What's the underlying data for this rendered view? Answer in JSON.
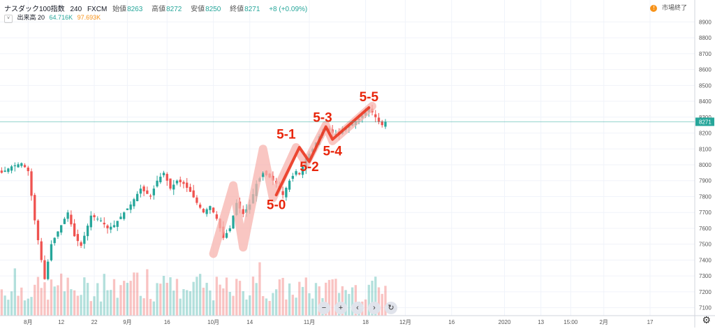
{
  "header": {
    "title": "ナスダック100指数",
    "interval": "240",
    "source": "FXCM",
    "open_label": "始値",
    "open": "8263",
    "high_label": "高値",
    "high": "8272",
    "low_label": "安値",
    "low": "8250",
    "close_label": "終値",
    "close": "8271",
    "change": "+8 (+0.09%)"
  },
  "volume_legend": {
    "label": "出来高 20",
    "value1": "64.716K",
    "value2": "97.693K"
  },
  "market_status": "市場終了",
  "controls": [
    "−",
    "+",
    "‹",
    "›",
    "↻"
  ],
  "colors": {
    "up": "#26a69a",
    "down": "#ef5350",
    "annotation": "#e8260c",
    "wave_band": "#f7b3ad",
    "price_line": "#26a69a"
  },
  "chart_data": {
    "type": "candlestick",
    "y_axis": {
      "min": 7050,
      "max": 8950,
      "ticks": [
        7100,
        7200,
        7300,
        7400,
        7500,
        7600,
        7700,
        7800,
        7900,
        8000,
        8100,
        8200,
        8300,
        8400,
        8500,
        8600,
        8700,
        8800,
        8900
      ],
      "current_price_label": "8271"
    },
    "x_axis": {
      "ticks": [
        {
          "label": "8月",
          "i": 8
        },
        {
          "label": "12",
          "i": 18
        },
        {
          "label": "22",
          "i": 28
        },
        {
          "label": "9月",
          "i": 38
        },
        {
          "label": "16",
          "i": 50
        },
        {
          "label": "10月",
          "i": 64
        },
        {
          "label": "14",
          "i": 75
        },
        {
          "label": "11月",
          "i": 93
        },
        {
          "label": "18",
          "i": 110
        },
        {
          "label": "12月",
          "i": 122
        },
        {
          "label": "16",
          "i": 136
        },
        {
          "label": "2020",
          "i": 152
        },
        {
          "label": "13",
          "i": 163
        },
        {
          "label": "15:00",
          "i": 172
        },
        {
          "label": "2月",
          "i": 182
        },
        {
          "label": "17",
          "i": 196
        }
      ],
      "slots": 210
    },
    "series_close_path": [
      [
        0,
        7950
      ],
      [
        3,
        7990
      ],
      [
        6,
        8010
      ],
      [
        8,
        7960
      ],
      [
        10,
        7650
      ],
      [
        12,
        7400
      ],
      [
        13,
        7280
      ],
      [
        15,
        7500
      ],
      [
        18,
        7620
      ],
      [
        20,
        7700
      ],
      [
        22,
        7550
      ],
      [
        24,
        7490
      ],
      [
        27,
        7680
      ],
      [
        30,
        7650
      ],
      [
        32,
        7600
      ],
      [
        34,
        7620
      ],
      [
        37,
        7700
      ],
      [
        39,
        7750
      ],
      [
        42,
        7850
      ],
      [
        45,
        7800
      ],
      [
        47,
        7900
      ],
      [
        49,
        7950
      ],
      [
        51,
        7850
      ],
      [
        53,
        7900
      ],
      [
        55,
        7880
      ],
      [
        57,
        7830
      ],
      [
        59,
        7760
      ],
      [
        61,
        7700
      ],
      [
        63,
        7740
      ],
      [
        65,
        7660
      ],
      [
        67,
        7540
      ],
      [
        69,
        7600
      ],
      [
        71,
        7760
      ],
      [
        73,
        7690
      ],
      [
        75,
        7750
      ],
      [
        77,
        7880
      ],
      [
        79,
        7950
      ],
      [
        81,
        7920
      ],
      [
        83,
        7880
      ],
      [
        85,
        7810
      ],
      [
        87,
        7900
      ],
      [
        89,
        7960
      ],
      [
        90,
        7940
      ],
      [
        92,
        8040
      ],
      [
        94,
        8100
      ],
      [
        96,
        8180
      ],
      [
        98,
        8230
      ],
      [
        100,
        8200
      ],
      [
        102,
        8190
      ],
      [
        104,
        8230
      ],
      [
        106,
        8260
      ],
      [
        108,
        8290
      ],
      [
        110,
        8330
      ],
      [
        111,
        8360
      ],
      [
        112,
        8330
      ],
      [
        113,
        8300
      ],
      [
        114,
        8270
      ],
      [
        115,
        8250
      ],
      [
        116,
        8271
      ]
    ],
    "volume_max": 100,
    "annotations": [
      {
        "text": "5-0",
        "price": 7720,
        "i": 83
      },
      {
        "text": "5-1",
        "price": 8165,
        "i": 86
      },
      {
        "text": "5-2",
        "price": 7960,
        "i": 93
      },
      {
        "text": "5-3",
        "price": 8270,
        "i": 97
      },
      {
        "text": "5-4",
        "price": 8060,
        "i": 100
      },
      {
        "text": "5-5",
        "price": 8400,
        "i": 111
      }
    ],
    "wave_line": [
      [
        83,
        7810
      ],
      [
        90,
        8110
      ],
      [
        93,
        8020
      ],
      [
        98,
        8240
      ],
      [
        100,
        8160
      ],
      [
        111,
        8360
      ]
    ],
    "wave_band": [
      [
        64,
        7440
      ],
      [
        70,
        7870
      ],
      [
        73,
        7480
      ],
      [
        79,
        8100
      ],
      [
        82,
        7790
      ],
      [
        89,
        8110
      ],
      [
        92,
        8010
      ],
      [
        98,
        8250
      ],
      [
        100,
        8150
      ],
      [
        112,
        8370
      ]
    ]
  }
}
